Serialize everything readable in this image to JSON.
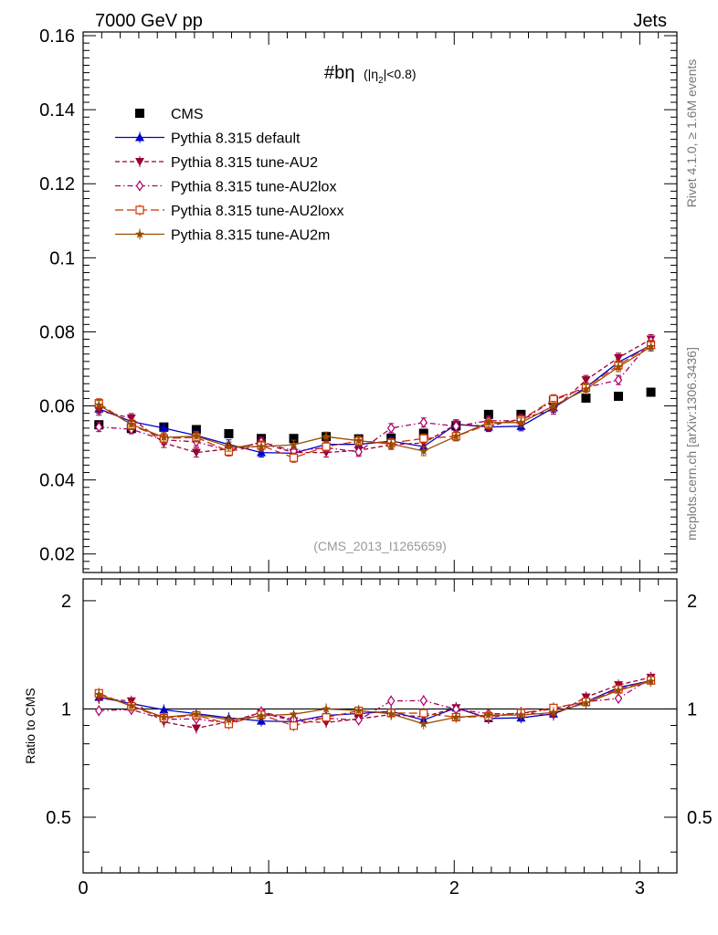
{
  "header": {
    "left": "7000 GeV pp",
    "right": "Jets"
  },
  "side_labels": {
    "rivet": "Rivet 4.1.0, ≥ 1.6M events",
    "mcplots": "mcplots.cern.ch [arXiv:1306.3436]"
  },
  "plot": {
    "title_main": "#bη",
    "title_sub_open": "(|η",
    "title_sub_index": "2",
    "title_sub_close": "|<0.8)",
    "watermark": "(CMS_2013_I1265659)",
    "ratio_ylabel": "Ratio to CMS"
  },
  "colors": {
    "cms": "#000000",
    "default": "#0000cc",
    "au2": "#990033",
    "au2lox": "#aa0066",
    "au2loxx": "#cc3300",
    "au2m": "#994c00"
  },
  "chart_data": {
    "type": "line",
    "x": [
      0.085,
      0.26,
      0.435,
      0.61,
      0.785,
      0.96,
      1.135,
      1.31,
      1.485,
      1.66,
      1.835,
      2.01,
      2.185,
      2.36,
      2.535,
      2.71,
      2.885,
      3.06
    ],
    "xlim": [
      0,
      3.2
    ],
    "ylim": [
      0.015,
      0.161
    ],
    "ratio_ylim": [
      0.35,
      2.3
    ],
    "x_ticks": [
      "0",
      "1",
      "2",
      "3"
    ],
    "y_ticks": [
      "0.02",
      "0.04",
      "0.06",
      "0.08",
      "0.1",
      "0.12",
      "0.14",
      "0.16"
    ],
    "ratio_ticks": [
      "0.5",
      "1",
      "2"
    ],
    "series": [
      {
        "name": "CMS",
        "key": "cms",
        "style": "data",
        "marker": "square",
        "values": [
          0.0549,
          0.0539,
          0.0543,
          0.0536,
          0.0525,
          0.0512,
          0.0512,
          0.0517,
          0.0511,
          0.0513,
          0.0526,
          0.0546,
          0.0577,
          0.0577,
          0.0614,
          0.0621,
          0.0626,
          0.0637
        ]
      },
      {
        "name": "Pythia 8.315 default",
        "key": "default",
        "style": "solid",
        "marker": "triangle-up",
        "values": [
          0.0592,
          0.0558,
          0.054,
          0.052,
          0.0496,
          0.0474,
          0.0472,
          0.0496,
          0.0496,
          0.0505,
          0.049,
          0.055,
          0.0543,
          0.0545,
          0.0595,
          0.065,
          0.0718,
          0.0764
        ]
      },
      {
        "name": "Pythia 8.315 tune-AU2",
        "key": "au2",
        "style": "dashed",
        "marker": "triangle-down",
        "values": [
          0.0587,
          0.0567,
          0.05,
          0.0474,
          0.0484,
          0.05,
          0.0474,
          0.0474,
          0.048,
          0.0495,
          0.05,
          0.055,
          0.0545,
          0.0565,
          0.059,
          0.067,
          0.073,
          0.078
        ]
      },
      {
        "name": "Pythia 8.315 tune-AU2lox",
        "key": "au2lox",
        "style": "dashdot",
        "marker": "diamond",
        "values": [
          0.0543,
          0.0537,
          0.0508,
          0.0503,
          0.0479,
          0.0503,
          0.0478,
          0.0487,
          0.0476,
          0.054,
          0.0555,
          0.0545,
          0.056,
          0.056,
          0.0615,
          0.065,
          0.067,
          0.0775
        ]
      },
      {
        "name": "Pythia 8.315 tune-AU2loxx",
        "key": "au2loxx",
        "style": "longdash",
        "marker": "square-open",
        "values": [
          0.0607,
          0.0548,
          0.0512,
          0.0515,
          0.0477,
          0.0493,
          0.046,
          0.049,
          0.0505,
          0.05,
          0.0512,
          0.0518,
          0.055,
          0.0562,
          0.0618,
          0.065,
          0.071,
          0.0765
        ]
      },
      {
        "name": "Pythia 8.315 tune-AU2m",
        "key": "au2m",
        "style": "solid",
        "marker": "star",
        "values": [
          0.0602,
          0.055,
          0.0515,
          0.0518,
          0.049,
          0.049,
          0.0495,
          0.0517,
          0.0506,
          0.0497,
          0.0478,
          0.0518,
          0.0555,
          0.0555,
          0.06,
          0.0645,
          0.0705,
          0.076
        ]
      }
    ]
  }
}
